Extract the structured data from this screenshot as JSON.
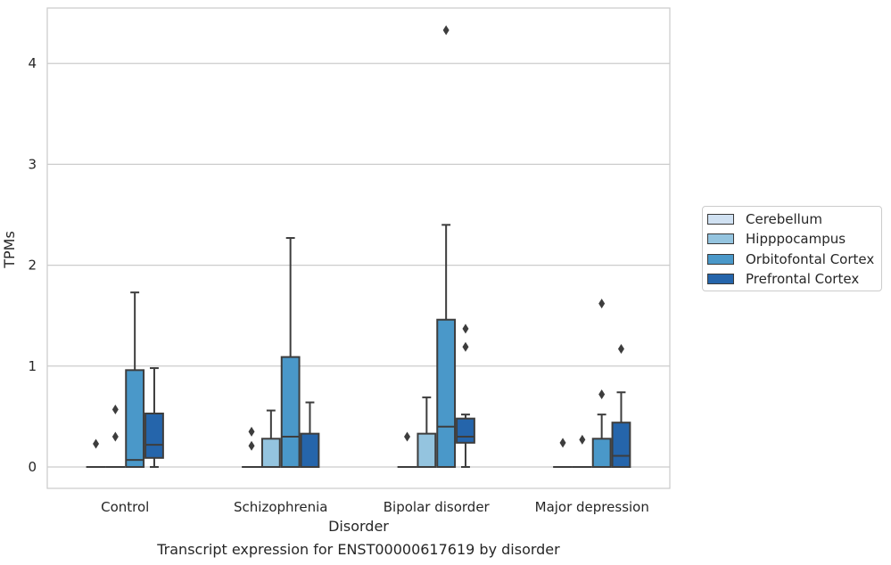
{
  "chart_data": {
    "type": "box",
    "title": "Transcript expression for ENST00000617619 by disorder",
    "xlabel": "Disorder",
    "ylabel": "TPMs",
    "ylim": [
      -0.2,
      4.55
    ],
    "yticks": [
      "0",
      "1",
      "2",
      "3",
      "4"
    ],
    "categories": [
      "Control",
      "Schizophrenia",
      "Bipolar disorder",
      "Major depression"
    ],
    "grid": "horizontal",
    "legend_position": "right",
    "series": [
      {
        "name": "Cerebellum",
        "color": "#d0e1f2",
        "boxes": [
          {
            "q1": 0,
            "median": 0,
            "q3": 0,
            "whisker_low": 0,
            "whisker_high": 0,
            "outliers": [
              0.23
            ]
          },
          {
            "q1": 0,
            "median": 0,
            "q3": 0,
            "whisker_low": 0,
            "whisker_high": 0,
            "outliers": [
              0.35,
              0.21
            ]
          },
          {
            "q1": 0,
            "median": 0,
            "q3": 0,
            "whisker_low": 0,
            "whisker_high": 0,
            "outliers": [
              0.3
            ]
          },
          {
            "q1": 0,
            "median": 0,
            "q3": 0,
            "whisker_low": 0,
            "whisker_high": 0,
            "outliers": [
              0.24
            ]
          }
        ]
      },
      {
        "name": "Hipppocampus",
        "color": "#94c4df",
        "boxes": [
          {
            "q1": 0,
            "median": 0,
            "q3": 0,
            "whisker_low": 0,
            "whisker_high": 0,
            "outliers": [
              0.57,
              0.3
            ]
          },
          {
            "q1": 0,
            "median": 0,
            "q3": 0.28,
            "whisker_low": 0,
            "whisker_high": 0.56,
            "outliers": []
          },
          {
            "q1": 0,
            "median": 0,
            "q3": 0.33,
            "whisker_low": 0,
            "whisker_high": 0.69,
            "outliers": []
          },
          {
            "q1": 0,
            "median": 0,
            "q3": 0,
            "whisker_low": 0,
            "whisker_high": 0,
            "outliers": [
              0.27
            ]
          }
        ]
      },
      {
        "name": "Orbitofontal Cortex",
        "color": "#4a98c9",
        "boxes": [
          {
            "q1": 0,
            "median": 0.07,
            "q3": 0.96,
            "whisker_low": 0,
            "whisker_high": 1.73,
            "outliers": []
          },
          {
            "q1": 0,
            "median": 0.3,
            "q3": 1.09,
            "whisker_low": 0,
            "whisker_high": 2.27,
            "outliers": []
          },
          {
            "q1": 0,
            "median": 0.4,
            "q3": 1.46,
            "whisker_low": 0,
            "whisker_high": 2.4,
            "outliers": [
              4.33
            ]
          },
          {
            "q1": 0,
            "median": 0,
            "q3": 0.28,
            "whisker_low": 0,
            "whisker_high": 0.52,
            "outliers": [
              1.62,
              0.72
            ]
          }
        ]
      },
      {
        "name": "Prefrontal Cortex",
        "color": "#2565ab",
        "boxes": [
          {
            "q1": 0.09,
            "median": 0.22,
            "q3": 0.53,
            "whisker_low": 0,
            "whisker_high": 0.98,
            "outliers": []
          },
          {
            "q1": 0,
            "median": 0,
            "q3": 0.33,
            "whisker_low": 0,
            "whisker_high": 0.64,
            "outliers": []
          },
          {
            "q1": 0.24,
            "median": 0.3,
            "q3": 0.48,
            "whisker_low": 0,
            "whisker_high": 0.52,
            "outliers": [
              1.37,
              1.19
            ]
          },
          {
            "q1": 0,
            "median": 0.11,
            "q3": 0.44,
            "whisker_low": 0,
            "whisker_high": 0.74,
            "outliers": [
              1.17
            ]
          }
        ]
      }
    ]
  }
}
